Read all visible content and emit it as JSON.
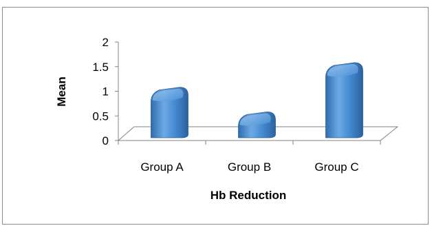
{
  "chart_data": {
    "type": "bar",
    "style": "3d-cylinder",
    "categories": [
      "Group A",
      "Group B",
      "Group C"
    ],
    "values": [
      0.9,
      0.4,
      1.4
    ],
    "xlabel": "Hb Reduction",
    "ylabel": "Mean",
    "ylim": [
      0,
      2
    ],
    "yticks": [
      "0",
      "0.5",
      "1",
      "1.5",
      "2"
    ],
    "grid": false,
    "legend": "none",
    "colors": {
      "bar_main": "#4A8FD6",
      "bar_dark": "#2C68A8",
      "bar_light": "#8EC0EE",
      "axis": "#808080"
    }
  }
}
